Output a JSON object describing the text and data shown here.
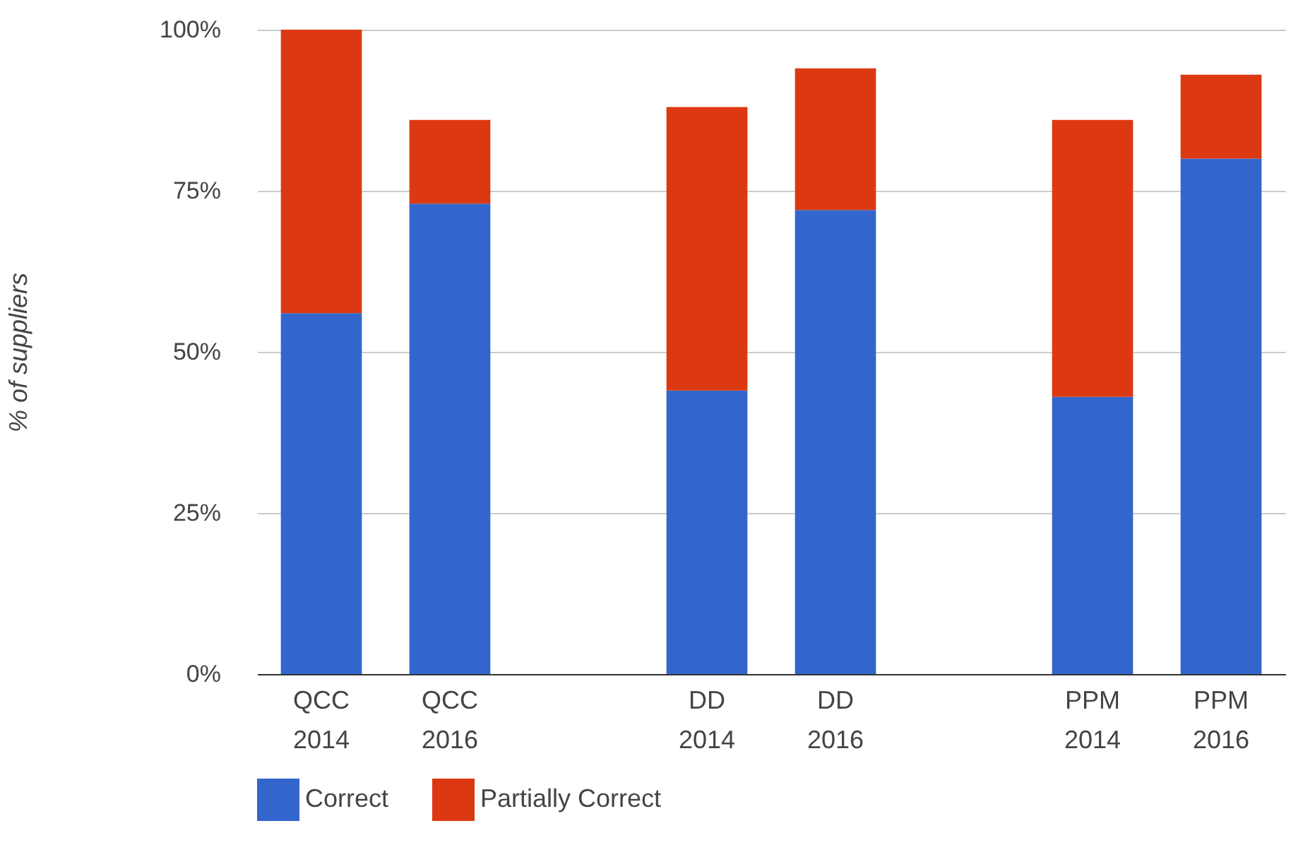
{
  "chart_data": {
    "type": "bar",
    "stacked": true,
    "ylabel": "% of suppliers",
    "categories": [
      "QCC 2014",
      "QCC 2016",
      null,
      "DD 2014",
      "DD 2016",
      null,
      "PPM 2014",
      "PPM 2016"
    ],
    "series": [
      {
        "name": "Correct",
        "color": "#3366cc",
        "values": [
          56,
          73,
          null,
          44,
          72,
          null,
          43,
          80
        ]
      },
      {
        "name": "Partially Correct",
        "color": "#dc3912",
        "values": [
          44,
          13,
          null,
          44,
          22,
          null,
          43,
          13
        ]
      }
    ],
    "ylim": [
      0,
      100
    ],
    "yticks": [
      {
        "value": 0,
        "label": "0%"
      },
      {
        "value": 25,
        "label": "25%"
      },
      {
        "value": 50,
        "label": "50%"
      },
      {
        "value": 75,
        "label": "75%"
      },
      {
        "value": 100,
        "label": "100%"
      }
    ],
    "grid": "y",
    "legend": "bottom"
  }
}
